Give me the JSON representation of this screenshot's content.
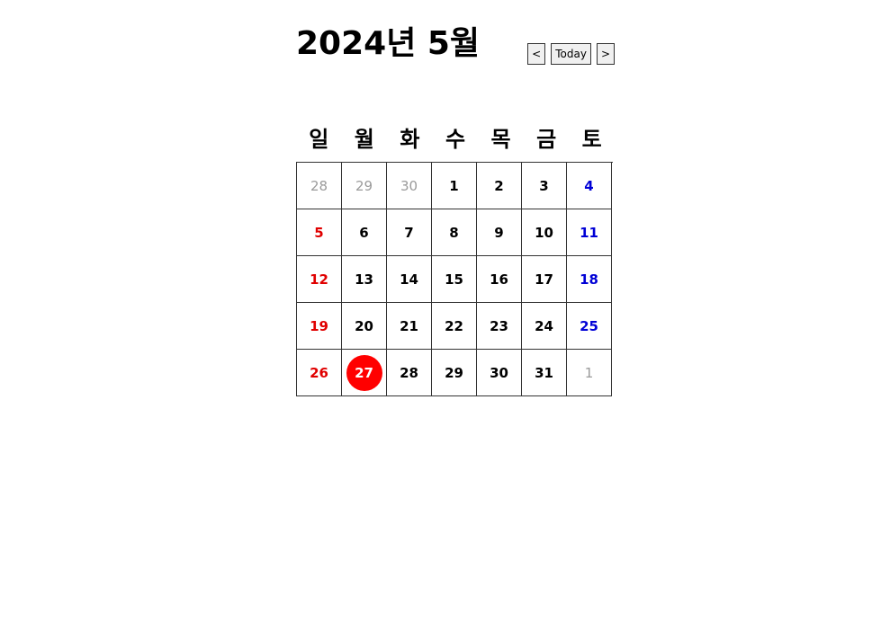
{
  "calendar": {
    "title": "2024년 5월",
    "prev_label": "<",
    "today_label": "Today",
    "next_label": ">",
    "weekdays": [
      "일",
      "월",
      "화",
      "수",
      "목",
      "금",
      "토"
    ],
    "days": [
      {
        "label": "28",
        "kind": "other"
      },
      {
        "label": "29",
        "kind": "other"
      },
      {
        "label": "30",
        "kind": "other"
      },
      {
        "label": "1",
        "kind": "normal"
      },
      {
        "label": "2",
        "kind": "normal"
      },
      {
        "label": "3",
        "kind": "normal"
      },
      {
        "label": "4",
        "kind": "sat"
      },
      {
        "label": "5",
        "kind": "sun"
      },
      {
        "label": "6",
        "kind": "normal"
      },
      {
        "label": "7",
        "kind": "normal"
      },
      {
        "label": "8",
        "kind": "normal"
      },
      {
        "label": "9",
        "kind": "normal"
      },
      {
        "label": "10",
        "kind": "normal"
      },
      {
        "label": "11",
        "kind": "sat"
      },
      {
        "label": "12",
        "kind": "sun"
      },
      {
        "label": "13",
        "kind": "normal"
      },
      {
        "label": "14",
        "kind": "normal"
      },
      {
        "label": "15",
        "kind": "normal"
      },
      {
        "label": "16",
        "kind": "normal"
      },
      {
        "label": "17",
        "kind": "normal"
      },
      {
        "label": "18",
        "kind": "sat"
      },
      {
        "label": "19",
        "kind": "sun"
      },
      {
        "label": "20",
        "kind": "normal"
      },
      {
        "label": "21",
        "kind": "normal"
      },
      {
        "label": "22",
        "kind": "normal"
      },
      {
        "label": "23",
        "kind": "normal"
      },
      {
        "label": "24",
        "kind": "normal"
      },
      {
        "label": "25",
        "kind": "sat"
      },
      {
        "label": "26",
        "kind": "sun"
      },
      {
        "label": "27",
        "kind": "today"
      },
      {
        "label": "28",
        "kind": "normal"
      },
      {
        "label": "29",
        "kind": "normal"
      },
      {
        "label": "30",
        "kind": "normal"
      },
      {
        "label": "31",
        "kind": "normal"
      },
      {
        "label": "1",
        "kind": "other"
      }
    ]
  },
  "colors": {
    "sunday": "#e00000",
    "saturday": "#0000d6",
    "other_month": "#9a9a9a",
    "today_bg": "#ff0000"
  }
}
